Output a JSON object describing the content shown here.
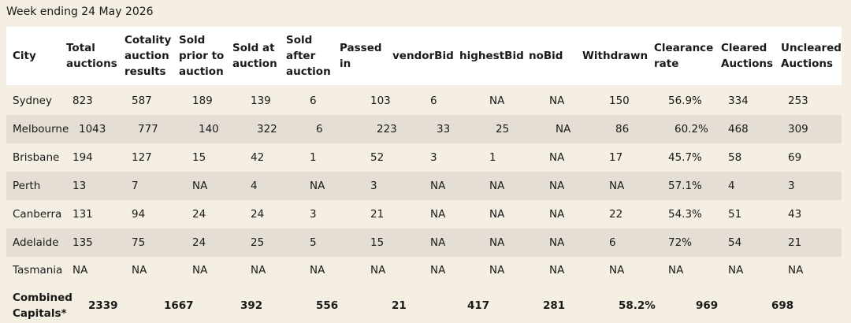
{
  "header": {
    "title": "Week ending 24 May 2026"
  },
  "table": {
    "columns": [
      "City",
      "Total auctions",
      "Cotality auction results",
      "Sold prior to auction",
      "Sold at auction",
      "Sold after auction",
      "Passed in",
      "vendorBid",
      "highestBid",
      "noBid",
      "Withdrawn",
      "Clearance rate",
      "Cleared Auctions",
      "Uncleared Auctions"
    ],
    "rows": [
      [
        "Sydney",
        "823",
        "587",
        "189",
        "139",
        "6",
        "103",
        "6",
        "NA",
        "NA",
        "150",
        "56.9%",
        "334",
        "253"
      ],
      [
        "Melbourne",
        "1043",
        "777",
        "140",
        "322",
        "6",
        "223",
        "33",
        "25",
        "NA",
        "86",
        "60.2%",
        "468",
        "309"
      ],
      [
        "Brisbane",
        "194",
        "127",
        "15",
        "42",
        "1",
        "52",
        "3",
        "1",
        "NA",
        "17",
        "45.7%",
        "58",
        "69"
      ],
      [
        "Perth",
        "13",
        "7",
        "NA",
        "4",
        "NA",
        "3",
        "NA",
        "NA",
        "NA",
        "NA",
        "57.1%",
        "4",
        "3"
      ],
      [
        "Canberra",
        "131",
        "94",
        "24",
        "24",
        "3",
        "21",
        "NA",
        "NA",
        "NA",
        "22",
        "54.3%",
        "51",
        "43"
      ],
      [
        "Adelaide",
        "135",
        "75",
        "24",
        "25",
        "5",
        "15",
        "NA",
        "NA",
        "NA",
        "6",
        "72%",
        "54",
        "21"
      ],
      [
        "Tasmania",
        "NA",
        "NA",
        "NA",
        "NA",
        "NA",
        "NA",
        "NA",
        "NA",
        "NA",
        "NA",
        "NA",
        "NA",
        "NA"
      ]
    ],
    "footer_row": [
      "Combined Capitals*",
      "2339",
      "1667",
      "392",
      "556",
      "21",
      "417",
      "281",
      "58.2%",
      "969",
      "698"
    ]
  }
}
